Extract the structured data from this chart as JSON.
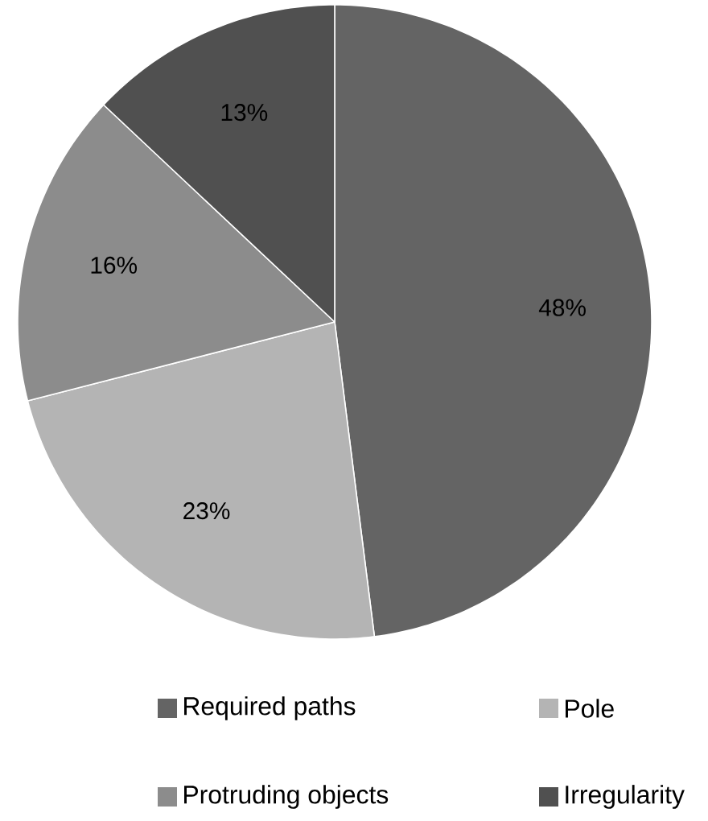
{
  "chart_data": {
    "type": "pie",
    "categories": [
      "Required paths",
      "Pole",
      "Protruding objects",
      "Irregularity"
    ],
    "values": [
      48,
      23,
      16,
      13
    ],
    "value_labels": [
      "48%",
      "23%",
      "16%",
      "13%"
    ],
    "colors": [
      "#646464",
      "#b4b4b4",
      "#8c8c8c",
      "#505050"
    ],
    "legend": "bottom"
  }
}
